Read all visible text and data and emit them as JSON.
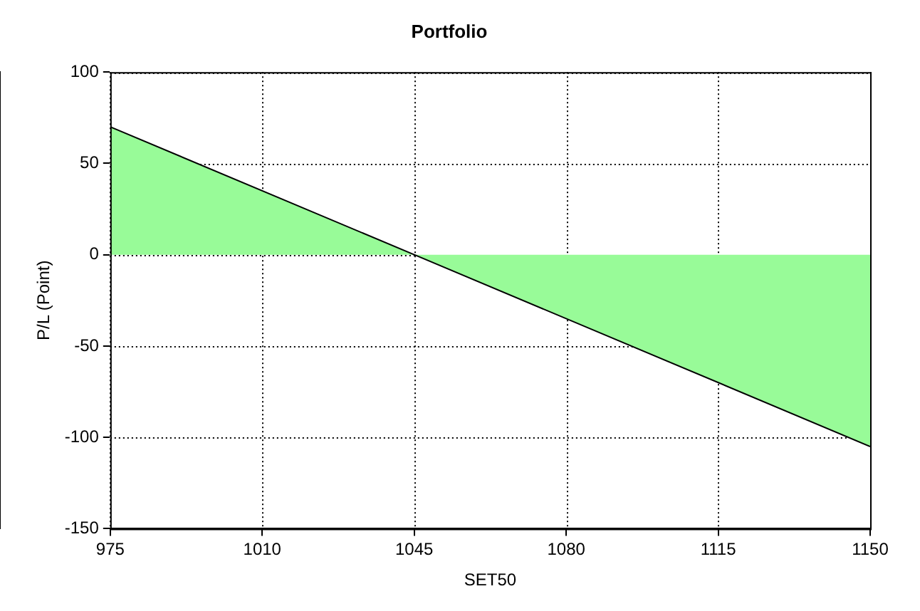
{
  "chart_data": {
    "type": "area",
    "title": "Portfolio",
    "xlabel": "SET50",
    "ylabel": "P/L (Point)",
    "x": [
      975,
      1045,
      1150
    ],
    "series": [
      {
        "color": "#98fb98",
        "values": [
          70,
          0,
          -105
        ]
      }
    ],
    "xlim": [
      975,
      1150
    ],
    "xticks": [
      975,
      1010,
      1045,
      1080,
      1115,
      1150
    ],
    "ylim": [
      -150,
      100
    ],
    "yticks": [
      -150,
      -100,
      -50,
      0,
      50,
      100
    ],
    "grid": true,
    "legend": false,
    "marker": "none"
  }
}
